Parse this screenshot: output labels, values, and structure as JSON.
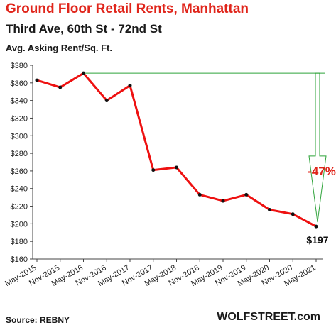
{
  "chart_data": {
    "type": "line",
    "title": "Ground  Floor Retail Rents, Manhattan",
    "subtitle": "Third Ave, 60th St - 72nd St",
    "ylabel": "Avg. Asking Rent/Sq. Ft.",
    "categories": [
      "May-2015",
      "Nov-2015",
      "May-2016",
      "Nov-2016",
      "May-2017",
      "Nov-2017",
      "May-2018",
      "Nov-2018",
      "May-2019",
      "Nov-2019",
      "May-2020",
      "Nov-2020",
      "May-2021"
    ],
    "series": [
      {
        "color": "#ee1111",
        "values": [
          363,
          355,
          371,
          340,
          357,
          261,
          264,
          233,
          226,
          233,
          216,
          211,
          197
        ]
      }
    ],
    "ylim": [
      160,
      380
    ],
    "yticks": [
      160,
      180,
      200,
      220,
      240,
      260,
      280,
      300,
      320,
      340,
      360,
      380
    ],
    "ytick_labels": [
      "$160",
      "$180",
      "$200",
      "$220",
      "$240",
      "$260",
      "$280",
      "$300",
      "$320",
      "$340",
      "$360",
      "$380"
    ],
    "grid": false,
    "annotations": {
      "change": "-47%",
      "change_color": "#e0251b",
      "last_value": "$197",
      "arrow_color": "#2ea33a"
    }
  },
  "footer": {
    "source": "Source: REBNY",
    "brand": "WOLFSTREET.com"
  }
}
